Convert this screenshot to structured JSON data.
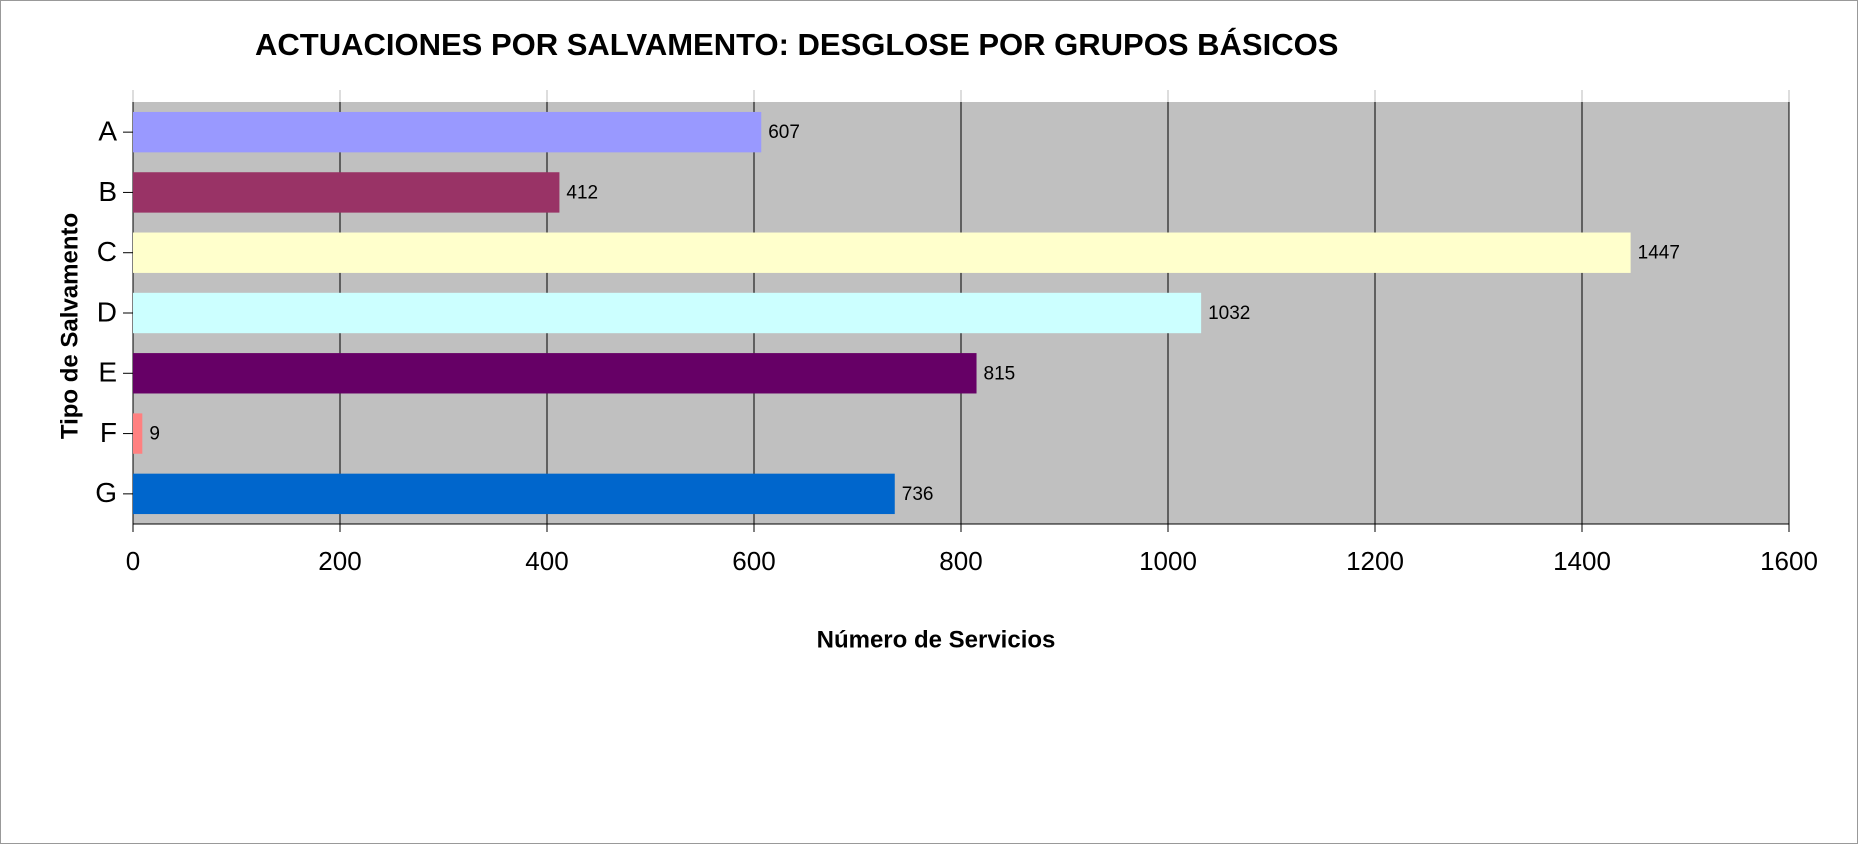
{
  "chart_data": {
    "type": "hbar",
    "title": "ACTUACIONES POR SALVAMENTO: DESGLOSE POR GRUPOS BÁSICOS",
    "x_label": "Número de Servicios",
    "y_label": "Tipo de Salvamento",
    "categories": [
      "A",
      "B",
      "C",
      "D",
      "E",
      "F",
      "G"
    ],
    "values": [
      607,
      412,
      1447,
      1032,
      815,
      9,
      736
    ],
    "colors": [
      "#9999ff",
      "#993366",
      "#ffffcc",
      "#ccffff",
      "#660066",
      "#ff8080",
      "#0066cc"
    ],
    "xlim": [
      0,
      1600
    ],
    "xticks": [
      0,
      200,
      400,
      600,
      800,
      1000,
      1200,
      1400,
      1600
    ],
    "grid": true
  }
}
